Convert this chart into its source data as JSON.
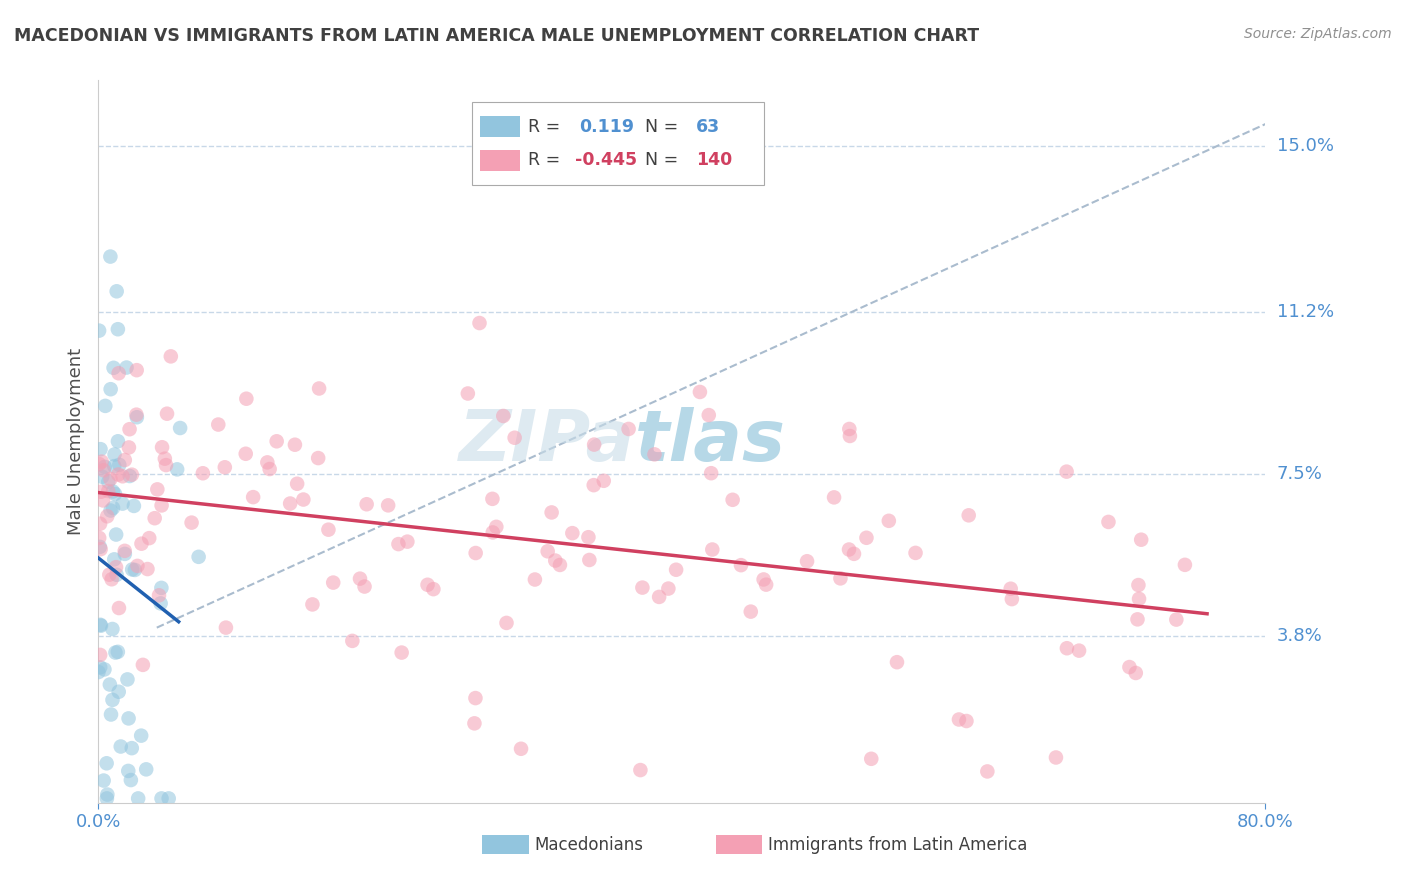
{
  "title": "MACEDONIAN VS IMMIGRANTS FROM LATIN AMERICA MALE UNEMPLOYMENT CORRELATION CHART",
  "source": "Source: ZipAtlas.com",
  "ylabel": "Male Unemployment",
  "xlim": [
    0.0,
    0.8
  ],
  "ylim": [
    0.0,
    0.165
  ],
  "yticks": [
    0.038,
    0.075,
    0.112,
    0.15
  ],
  "ytick_labels": [
    "3.8%",
    "7.5%",
    "11.2%",
    "15.0%"
  ],
  "xtick_labels": [
    "0.0%",
    "80.0%"
  ],
  "xticks": [
    0.0,
    0.8
  ],
  "blue_color": "#92c5de",
  "pink_color": "#f4a0b4",
  "blue_line_color": "#2060b0",
  "pink_line_color": "#d04060",
  "diag_color": "#aabcce",
  "r_blue": 0.119,
  "n_blue": 63,
  "r_pink": -0.445,
  "n_pink": 140,
  "grid_color": "#c8d8e8",
  "title_color": "#404040",
  "axis_label_color": "#5090d0",
  "background_color": "#ffffff",
  "watermark_color": "#c8dce8",
  "legend_r_color": "#5090d0",
  "legend_r2_color": "#d04060"
}
